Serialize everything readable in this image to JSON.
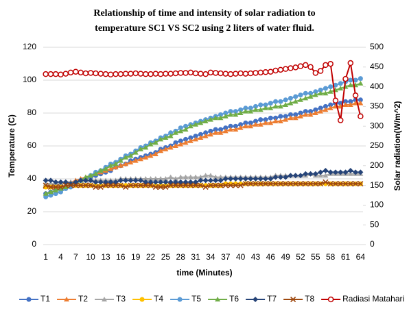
{
  "chart_data": {
    "type": "line",
    "title": [
      "Relationship of time and intensity of solar radiation to",
      "temperature SC1 VS SC2 using 2 liters of water fluid."
    ],
    "xlabel": "time (Minutes)",
    "ylabel": "Temperature (C)",
    "y2label": "Solar radiation(W/m^2)",
    "categories": [
      1,
      null,
      null,
      4,
      null,
      null,
      7,
      null,
      null,
      10,
      null,
      null,
      13,
      null,
      null,
      16,
      null,
      null,
      19,
      null,
      null,
      22,
      null,
      null,
      25,
      null,
      null,
      28,
      null,
      null,
      31,
      null,
      null,
      34,
      null,
      null,
      37,
      null,
      null,
      40,
      null,
      null,
      43,
      null,
      null,
      46,
      null,
      null,
      49,
      null,
      null,
      52,
      null,
      null,
      55,
      null,
      null,
      58,
      null,
      null,
      61,
      null,
      null,
      64
    ],
    "ylim": [
      0,
      120
    ],
    "yticks": [
      0,
      20,
      40,
      60,
      80,
      100,
      120
    ],
    "y2lim": [
      0,
      500
    ],
    "y2ticks": [
      0,
      50,
      100,
      150,
      200,
      250,
      300,
      350,
      400,
      450,
      500
    ],
    "grid": true,
    "legend": "bottom",
    "series": [
      {
        "name": "T1",
        "color": "#4472c4",
        "marker": "circle",
        "values": [
          31,
          32,
          33,
          34,
          35,
          37,
          38,
          39,
          40,
          41,
          42,
          43,
          44,
          45,
          47,
          48,
          49,
          51,
          52,
          53,
          54,
          55,
          56,
          58,
          59,
          60,
          62,
          63,
          64,
          65,
          66,
          67,
          68,
          69,
          70,
          70,
          71,
          72,
          72,
          73,
          74,
          74,
          75,
          76,
          76,
          77,
          77,
          78,
          78,
          79,
          79,
          80,
          81,
          81,
          82,
          83,
          84,
          85,
          86,
          86,
          87,
          87,
          88,
          88
        ]
      },
      {
        "name": "T2",
        "color": "#ed7d31",
        "marker": "triangle",
        "values": [
          35,
          36,
          36,
          37,
          38,
          38,
          39,
          40,
          41,
          42,
          43,
          44,
          45,
          46,
          47,
          48,
          49,
          50,
          51,
          52,
          53,
          54,
          55,
          57,
          58,
          59,
          60,
          61,
          62,
          63,
          64,
          65,
          66,
          67,
          68,
          68,
          69,
          70,
          70,
          71,
          72,
          72,
          73,
          73,
          74,
          74,
          75,
          75,
          76,
          77,
          77,
          78,
          79,
          79,
          80,
          81,
          82,
          83,
          84,
          84,
          85,
          85,
          86,
          86
        ]
      },
      {
        "name": "T3",
        "color": "#a5a5a5",
        "marker": "triangle",
        "values": [
          37,
          37,
          37,
          37,
          38,
          38,
          38,
          39,
          39,
          39,
          39,
          39,
          39,
          39,
          39,
          40,
          40,
          40,
          40,
          40,
          40,
          40,
          40,
          40,
          40,
          41,
          40,
          41,
          41,
          41,
          41,
          41,
          42,
          42,
          41,
          41,
          41,
          41,
          41,
          41,
          41,
          41,
          41,
          41,
          41,
          41,
          42,
          42,
          42,
          42,
          42,
          42,
          42,
          43,
          42,
          42,
          42,
          43,
          43,
          43,
          43,
          43,
          43,
          43
        ]
      },
      {
        "name": "T4",
        "color": "#ffc000",
        "marker": "circle",
        "values": [
          35,
          35,
          35,
          35,
          35,
          36,
          36,
          36,
          36,
          36,
          36,
          36,
          36,
          36,
          36,
          36,
          36,
          36,
          36,
          36,
          36,
          36,
          36,
          36,
          36,
          36,
          36,
          36,
          36,
          36,
          36,
          36,
          36,
          36,
          36,
          36,
          37,
          37,
          37,
          37,
          37,
          37,
          37,
          37,
          37,
          37,
          37,
          37,
          37,
          37,
          37,
          37,
          37,
          37,
          37,
          37,
          37,
          37,
          37,
          37,
          37,
          37,
          37,
          37
        ]
      },
      {
        "name": "T5",
        "color": "#5b9bd5",
        "marker": "circle",
        "values": [
          29,
          30,
          31,
          32,
          34,
          35,
          37,
          39,
          40,
          42,
          44,
          45,
          47,
          49,
          50,
          52,
          54,
          55,
          57,
          59,
          60,
          62,
          63,
          65,
          66,
          68,
          69,
          71,
          72,
          73,
          74,
          75,
          76,
          77,
          78,
          79,
          80,
          81,
          81,
          82,
          83,
          83,
          84,
          85,
          85,
          86,
          87,
          87,
          88,
          89,
          90,
          91,
          92,
          92,
          93,
          94,
          95,
          96,
          97,
          98,
          99,
          100,
          100,
          101
        ]
      },
      {
        "name": "T6",
        "color": "#70ad47",
        "marker": "triangle",
        "values": [
          31,
          32,
          33,
          34,
          35,
          37,
          38,
          39,
          41,
          42,
          43,
          45,
          46,
          48,
          49,
          51,
          53,
          54,
          56,
          58,
          59,
          61,
          62,
          64,
          65,
          66,
          68,
          69,
          70,
          72,
          73,
          74,
          75,
          76,
          77,
          77,
          78,
          79,
          79,
          80,
          81,
          81,
          82,
          82,
          83,
          83,
          84,
          84,
          85,
          86,
          87,
          88,
          89,
          90,
          91,
          92,
          92,
          93,
          94,
          95,
          96,
          97,
          97,
          98
        ]
      },
      {
        "name": "T7",
        "color": "#264478",
        "marker": "diamond",
        "values": [
          39,
          39,
          38,
          38,
          38,
          37,
          38,
          39,
          39,
          39,
          38,
          38,
          38,
          38,
          38,
          39,
          39,
          39,
          39,
          39,
          38,
          38,
          38,
          38,
          38,
          38,
          38,
          38,
          38,
          38,
          38,
          39,
          39,
          39,
          39,
          39,
          40,
          40,
          40,
          40,
          40,
          40,
          40,
          40,
          40,
          40,
          41,
          41,
          41,
          42,
          42,
          42,
          43,
          43,
          43,
          44,
          45,
          44,
          44,
          44,
          44,
          45,
          44,
          44
        ]
      },
      {
        "name": "T8",
        "color": "#9e480e",
        "marker": "x",
        "values": [
          36,
          35,
          35,
          35,
          36,
          36,
          36,
          36,
          36,
          36,
          35,
          35,
          36,
          36,
          36,
          36,
          35,
          36,
          36,
          36,
          36,
          36,
          35,
          35,
          35,
          36,
          36,
          36,
          36,
          36,
          36,
          36,
          35,
          36,
          36,
          36,
          36,
          36,
          36,
          36,
          37,
          37,
          37,
          37,
          37,
          37,
          37,
          37,
          37,
          37,
          37,
          37,
          37,
          37,
          37,
          37,
          38,
          37,
          37,
          37,
          37,
          37,
          37,
          37
        ]
      },
      {
        "name": "Radiasi Matahari",
        "color": "#c00000",
        "marker": "open-circle",
        "axis": "y2",
        "values": [
          432,
          432,
          432,
          431,
          433,
          436,
          438,
          436,
          434,
          435,
          434,
          433,
          432,
          431,
          432,
          432,
          433,
          433,
          434,
          433,
          432,
          432,
          433,
          432,
          433,
          433,
          434,
          435,
          435,
          436,
          434,
          433,
          432,
          436,
          435,
          434,
          433,
          432,
          433,
          434,
          433,
          434,
          435,
          436,
          437,
          438,
          441,
          443,
          445,
          447,
          449,
          452,
          455,
          450,
          435,
          440,
          455,
          458,
          365,
          315,
          420,
          460,
          378,
          325
        ]
      }
    ]
  }
}
